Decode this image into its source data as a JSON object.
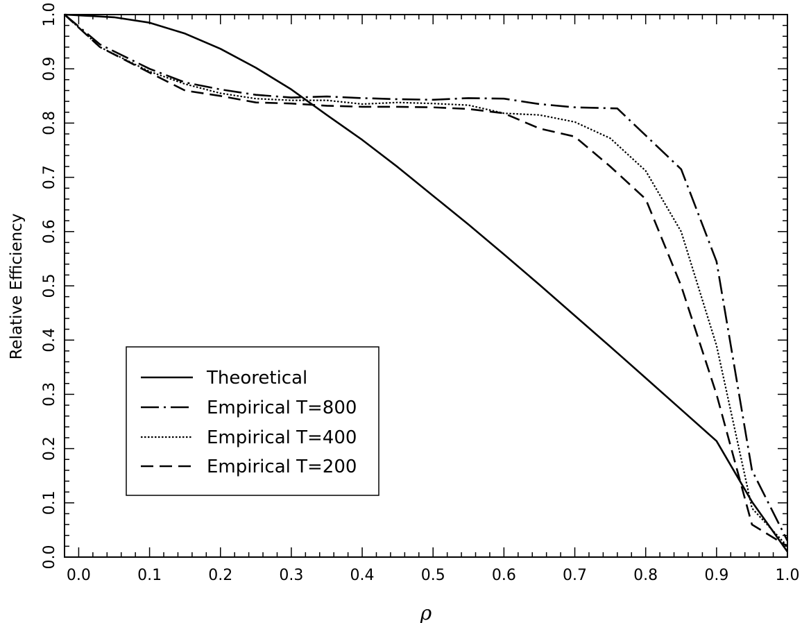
{
  "chart_data": {
    "type": "line",
    "title": "",
    "xlabel": "ρ",
    "ylabel": "Relative Efficiency",
    "xlim": [
      -0.02,
      1.0
    ],
    "ylim": [
      0.0,
      1.0
    ],
    "x_ticks": [
      0.0,
      0.1,
      0.2,
      0.3,
      0.4,
      0.5,
      0.6,
      0.7,
      0.8,
      0.9,
      1.0
    ],
    "x_tick_labels": [
      "0.0",
      "0.1",
      "0.2",
      "0.3",
      "0.4",
      "0.5",
      "0.6",
      "0.7",
      "0.8",
      "0.9",
      "1.0"
    ],
    "y_ticks": [
      0.0,
      0.1,
      0.2,
      0.3,
      0.4,
      0.5,
      0.6,
      0.7,
      0.8,
      0.9,
      1.0
    ],
    "y_tick_labels": [
      "0.0",
      "0.1",
      "0.2",
      "0.3",
      "0.4",
      "0.5",
      "0.6",
      "0.7",
      "0.8",
      "0.9",
      "1.0"
    ],
    "grid": false,
    "legend_position": "lower-left",
    "series": [
      {
        "name": "Theoretical",
        "style": "solid",
        "x": [
          -0.02,
          0.05,
          0.1,
          0.15,
          0.2,
          0.25,
          0.3,
          0.35,
          0.4,
          0.45,
          0.5,
          0.55,
          0.6,
          0.65,
          0.7,
          0.75,
          0.8,
          0.85,
          0.9,
          0.95,
          1.0
        ],
        "y": [
          1.0,
          0.995,
          0.985,
          0.965,
          0.937,
          0.902,
          0.862,
          0.815,
          0.769,
          0.719,
          0.666,
          0.613,
          0.558,
          0.502,
          0.445,
          0.388,
          0.33,
          0.272,
          0.214,
          0.102,
          0.01
        ]
      },
      {
        "name": "Empirical T=800",
        "style": "dashdot",
        "x": [
          -0.02,
          0.03,
          0.1,
          0.15,
          0.2,
          0.25,
          0.3,
          0.35,
          0.4,
          0.45,
          0.5,
          0.55,
          0.6,
          0.65,
          0.7,
          0.76,
          0.85,
          0.9,
          0.95,
          1.0
        ],
        "y": [
          1.0,
          0.945,
          0.9,
          0.875,
          0.862,
          0.852,
          0.847,
          0.849,
          0.846,
          0.844,
          0.843,
          0.846,
          0.845,
          0.835,
          0.829,
          0.827,
          0.715,
          0.545,
          0.16,
          0.03
        ]
      },
      {
        "name": "Empirical T=400",
        "style": "dotted",
        "x": [
          -0.02,
          0.03,
          0.1,
          0.15,
          0.2,
          0.25,
          0.3,
          0.35,
          0.4,
          0.45,
          0.5,
          0.55,
          0.6,
          0.65,
          0.7,
          0.75,
          0.8,
          0.85,
          0.9,
          0.95,
          1.0
        ],
        "y": [
          1.0,
          0.94,
          0.895,
          0.872,
          0.855,
          0.845,
          0.842,
          0.842,
          0.835,
          0.838,
          0.836,
          0.833,
          0.818,
          0.815,
          0.802,
          0.772,
          0.712,
          0.6,
          0.39,
          0.09,
          0.02
        ]
      },
      {
        "name": "Empirical T=200",
        "style": "dashed",
        "x": [
          -0.02,
          0.03,
          0.1,
          0.15,
          0.2,
          0.25,
          0.3,
          0.35,
          0.4,
          0.45,
          0.5,
          0.55,
          0.6,
          0.65,
          0.7,
          0.75,
          0.8,
          0.85,
          0.9,
          0.95,
          1.0
        ],
        "y": [
          1.0,
          0.94,
          0.893,
          0.86,
          0.85,
          0.838,
          0.836,
          0.832,
          0.83,
          0.83,
          0.829,
          0.826,
          0.818,
          0.79,
          0.775,
          0.72,
          0.66,
          0.5,
          0.3,
          0.06,
          0.02
        ]
      }
    ]
  }
}
